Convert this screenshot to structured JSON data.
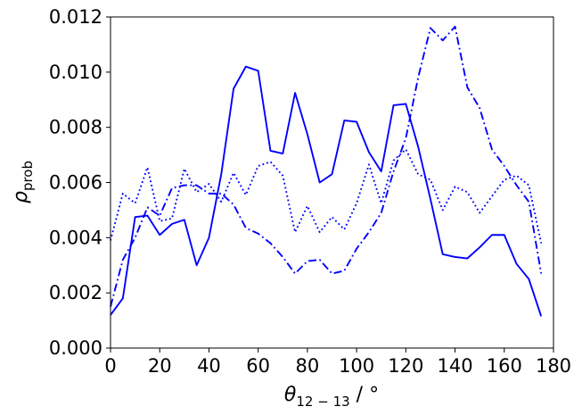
{
  "chart_data": {
    "type": "line",
    "title": "",
    "xlabel": {
      "symbol": "θ",
      "subscript": "12 − 13",
      "suffix": " / °"
    },
    "ylabel": {
      "symbol": "ρ",
      "subscript": "prob"
    },
    "xlim": [
      0,
      180
    ],
    "ylim": [
      0,
      0.012
    ],
    "xticks": [
      0,
      20,
      40,
      60,
      80,
      100,
      120,
      140,
      160,
      180
    ],
    "yticks": [
      0.0,
      0.002,
      0.004,
      0.006,
      0.008,
      0.01,
      0.012
    ],
    "ytick_labels": [
      "0.000",
      "0.002",
      "0.004",
      "0.006",
      "0.008",
      "0.010",
      "0.012"
    ],
    "grid": false,
    "legend": false,
    "color": "#0000ff",
    "series": [
      {
        "style": "solid",
        "x": [
          0,
          5,
          10,
          15,
          20,
          25,
          30,
          35,
          40,
          45,
          50,
          55,
          60,
          65,
          70,
          75,
          80,
          85,
          90,
          95,
          100,
          105,
          110,
          115,
          120,
          125,
          130,
          135,
          140,
          145,
          150,
          155,
          160,
          165,
          170,
          175
        ],
        "y": [
          0.0012,
          0.0018,
          0.00475,
          0.0048,
          0.0041,
          0.0045,
          0.00465,
          0.003,
          0.004,
          0.0063,
          0.0094,
          0.0102,
          0.01005,
          0.00715,
          0.00705,
          0.00925,
          0.00775,
          0.006,
          0.0063,
          0.00825,
          0.0082,
          0.0071,
          0.0064,
          0.0088,
          0.00885,
          0.0073,
          0.0054,
          0.0034,
          0.0033,
          0.00325,
          0.00365,
          0.0041,
          0.0041,
          0.00305,
          0.0025,
          0.00115
        ]
      },
      {
        "style": "dashdot",
        "x": [
          0,
          5,
          10,
          15,
          20,
          25,
          30,
          35,
          40,
          45,
          50,
          55,
          60,
          65,
          70,
          75,
          80,
          85,
          90,
          95,
          100,
          105,
          110,
          115,
          120,
          125,
          130,
          135,
          140,
          145,
          150,
          155,
          160,
          165,
          170,
          175
        ],
        "y": [
          0.0015,
          0.0032,
          0.004,
          0.0051,
          0.0048,
          0.0058,
          0.0059,
          0.0059,
          0.0056,
          0.0056,
          0.0052,
          0.00435,
          0.00415,
          0.0038,
          0.0033,
          0.0027,
          0.00315,
          0.0032,
          0.0027,
          0.0028,
          0.0036,
          0.0042,
          0.0049,
          0.0064,
          0.0076,
          0.0098,
          0.0116,
          0.01115,
          0.01165,
          0.00945,
          0.0087,
          0.0072,
          0.0066,
          0.0059,
          0.0053,
          0.0027
        ]
      },
      {
        "style": "dotted",
        "x": [
          0,
          5,
          10,
          15,
          20,
          25,
          30,
          35,
          40,
          45,
          50,
          55,
          60,
          65,
          70,
          75,
          80,
          85,
          90,
          95,
          100,
          105,
          110,
          115,
          120,
          125,
          130,
          135,
          140,
          145,
          150,
          155,
          160,
          165,
          170,
          175
        ],
        "y": [
          0.0039,
          0.0056,
          0.00525,
          0.00655,
          0.0046,
          0.0047,
          0.0065,
          0.00565,
          0.00595,
          0.0053,
          0.00635,
          0.00555,
          0.0066,
          0.00675,
          0.00625,
          0.0042,
          0.00515,
          0.0042,
          0.00475,
          0.0043,
          0.00525,
          0.00665,
          0.00525,
          0.0068,
          0.0072,
          0.0063,
          0.0061,
          0.005,
          0.00585,
          0.00565,
          0.0049,
          0.0055,
          0.0061,
          0.00625,
          0.0059,
          0.0038
        ]
      }
    ]
  }
}
